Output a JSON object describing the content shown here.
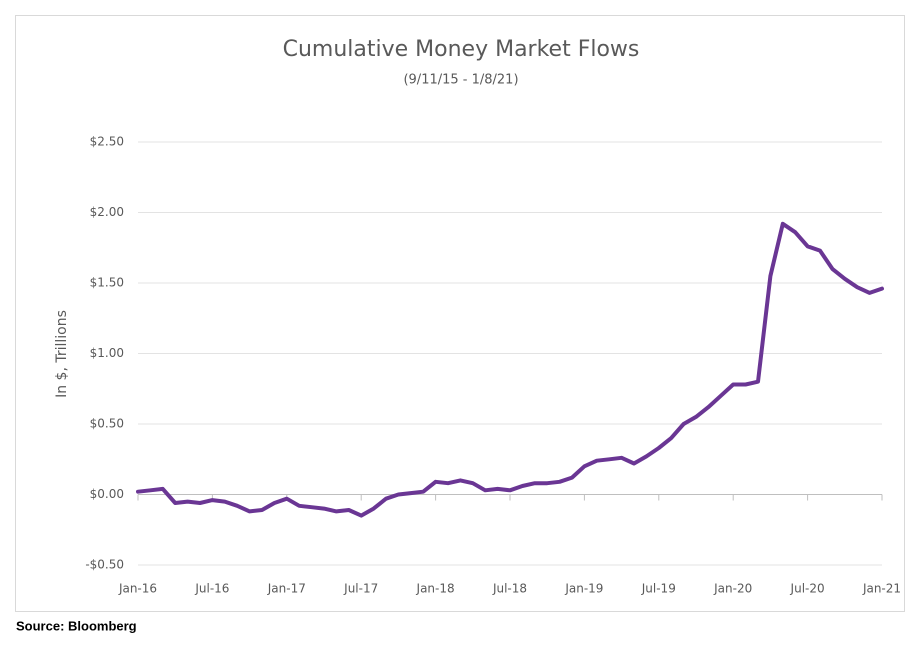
{
  "chart_data": {
    "type": "line",
    "title": "Cumulative Money Market Flows",
    "subtitle": "(9/11/15 - 1/8/21)",
    "y_label": "In $, Trillions",
    "source": "Source: Bloomberg",
    "x": [
      "2016-01",
      "2016-02",
      "2016-03",
      "2016-04",
      "2016-05",
      "2016-06",
      "2016-07",
      "2016-08",
      "2016-09",
      "2016-10",
      "2016-11",
      "2016-12",
      "2017-01",
      "2017-02",
      "2017-03",
      "2017-04",
      "2017-05",
      "2017-06",
      "2017-07",
      "2017-08",
      "2017-09",
      "2017-10",
      "2017-11",
      "2017-12",
      "2018-01",
      "2018-02",
      "2018-03",
      "2018-04",
      "2018-05",
      "2018-06",
      "2018-07",
      "2018-08",
      "2018-09",
      "2018-10",
      "2018-11",
      "2018-12",
      "2019-01",
      "2019-02",
      "2019-03",
      "2019-04",
      "2019-05",
      "2019-06",
      "2019-07",
      "2019-08",
      "2019-09",
      "2019-10",
      "2019-11",
      "2019-12",
      "2020-01",
      "2020-02",
      "2020-03",
      "2020-04",
      "2020-05",
      "2020-06",
      "2020-07",
      "2020-08",
      "2020-09",
      "2020-10",
      "2020-11",
      "2020-12",
      "2021-01"
    ],
    "series": [
      {
        "name": "Cumulative Money Market Flows",
        "color": "#6a3694",
        "values": [
          0.02,
          0.03,
          0.04,
          -0.06,
          -0.05,
          -0.06,
          -0.04,
          -0.05,
          -0.08,
          -0.12,
          -0.11,
          -0.06,
          -0.03,
          -0.08,
          -0.09,
          -0.1,
          -0.12,
          -0.11,
          -0.15,
          -0.1,
          -0.03,
          0.0,
          0.01,
          0.02,
          0.09,
          0.08,
          0.1,
          0.08,
          0.03,
          0.04,
          0.03,
          0.06,
          0.08,
          0.08,
          0.09,
          0.12,
          0.2,
          0.24,
          0.25,
          0.26,
          0.22,
          0.27,
          0.33,
          0.4,
          0.5,
          0.55,
          0.62,
          0.7,
          0.78,
          0.78,
          0.8,
          1.55,
          1.92,
          1.86,
          1.76,
          1.73,
          1.6,
          1.53,
          1.47,
          1.43,
          1.46
        ]
      }
    ],
    "xlim": [
      "2016-01",
      "2021-01"
    ],
    "xticks": [
      {
        "value": "2016-01",
        "label": "Jan-16"
      },
      {
        "value": "2016-07",
        "label": "Jul-16"
      },
      {
        "value": "2017-01",
        "label": "Jan-17"
      },
      {
        "value": "2017-07",
        "label": "Jul-17"
      },
      {
        "value": "2018-01",
        "label": "Jan-18"
      },
      {
        "value": "2018-07",
        "label": "Jul-18"
      },
      {
        "value": "2019-01",
        "label": "Jan-19"
      },
      {
        "value": "2019-07",
        "label": "Jul-19"
      },
      {
        "value": "2020-01",
        "label": "Jan-20"
      },
      {
        "value": "2020-07",
        "label": "Jul-20"
      },
      {
        "value": "2021-01",
        "label": "Jan-21"
      }
    ],
    "ylim": [
      -0.5,
      2.5
    ],
    "yticks": [
      {
        "value": -0.5,
        "label": "-$0.50"
      },
      {
        "value": 0,
        "label": "$0.00"
      },
      {
        "value": 0.5,
        "label": "$0.50"
      },
      {
        "value": 1,
        "label": "$1.00"
      },
      {
        "value": 1.5,
        "label": "$1.50"
      },
      {
        "value": 2,
        "label": "$2.00"
      },
      {
        "value": 2.5,
        "label": "$2.50"
      }
    ],
    "grid": true
  }
}
